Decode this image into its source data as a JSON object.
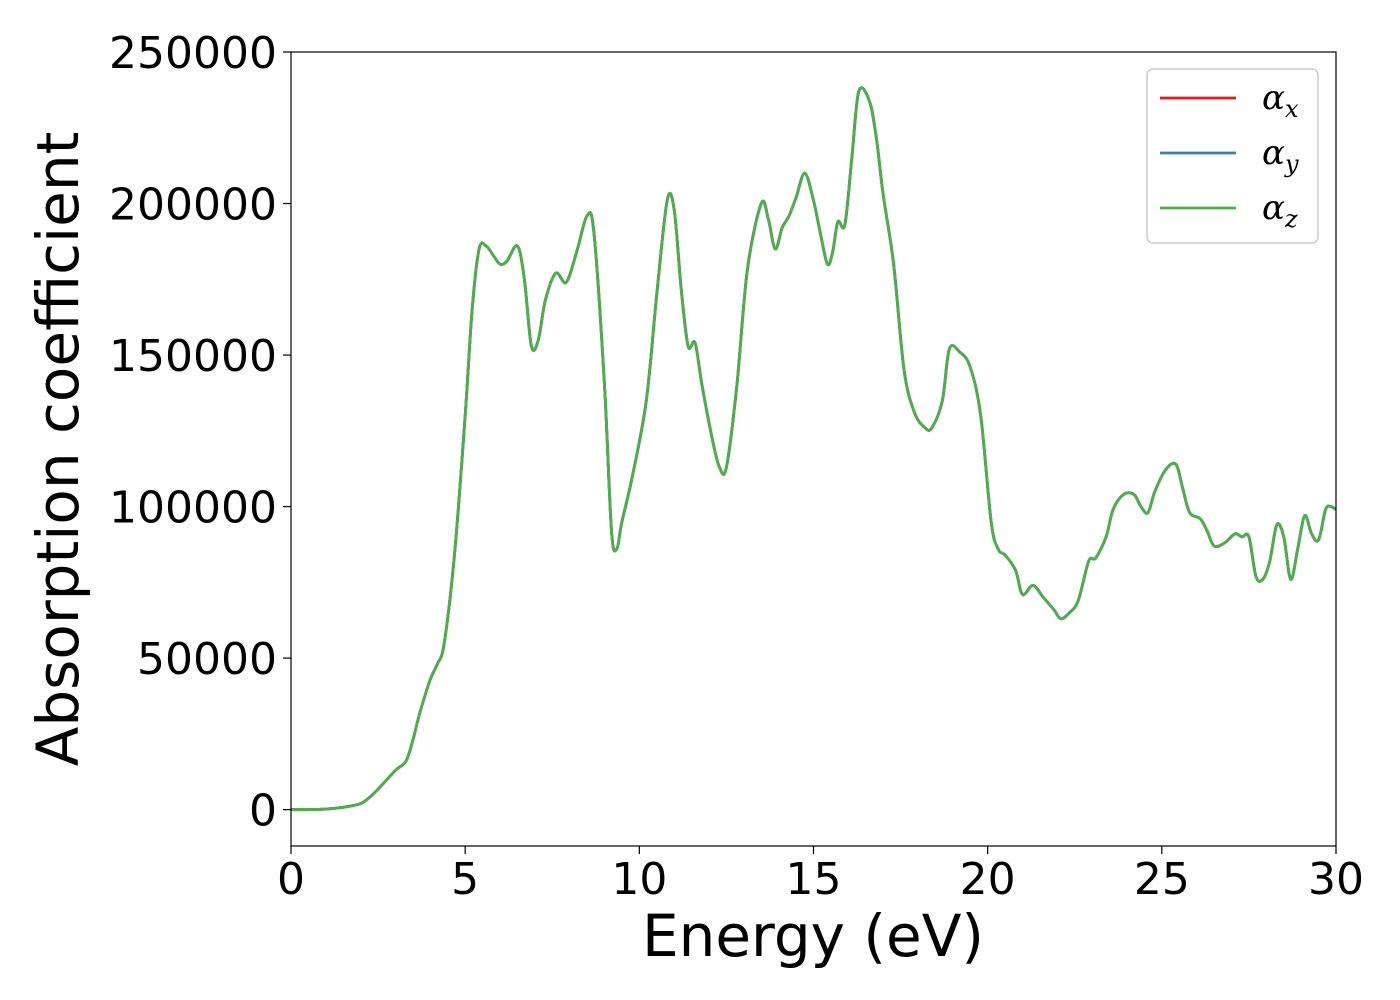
{
  "chart_data": {
    "type": "line",
    "xlabel": "Energy (eV)",
    "ylabel": "Absorption coefficient",
    "xlim": [
      0,
      30
    ],
    "ylim": [
      -12000,
      250000
    ],
    "xticks": [
      0,
      5,
      10,
      15,
      20,
      25,
      30
    ],
    "yticks": [
      0,
      50000,
      100000,
      150000,
      200000,
      250000
    ],
    "grid": false,
    "legend_position": "top-right",
    "legend": [
      {
        "symbol": "α",
        "sub": "x",
        "color": "#e41a1c"
      },
      {
        "symbol": "α",
        "sub": "y",
        "color": "#377eb8"
      },
      {
        "symbol": "α",
        "sub": "z",
        "color": "#4daf4a"
      }
    ],
    "x": [
      0,
      0.5,
      1.0,
      1.5,
      2.0,
      2.3,
      2.6,
      3.0,
      3.3,
      3.5,
      3.7,
      4.0,
      4.2,
      4.4,
      4.7,
      5.0,
      5.2,
      5.4,
      5.6,
      5.8,
      6.0,
      6.2,
      6.5,
      6.7,
      6.9,
      7.1,
      7.3,
      7.6,
      7.9,
      8.2,
      8.5,
      8.7,
      9.0,
      9.2,
      9.35,
      9.5,
      9.8,
      10.2,
      10.5,
      10.8,
      11.0,
      11.2,
      11.4,
      11.6,
      11.8,
      12.1,
      12.3,
      12.5,
      12.8,
      13.1,
      13.5,
      13.7,
      13.9,
      14.1,
      14.3,
      14.5,
      14.75,
      15.0,
      15.2,
      15.4,
      15.55,
      15.7,
      15.9,
      16.1,
      16.3,
      16.6,
      16.8,
      17.0,
      17.3,
      17.6,
      17.9,
      18.2,
      18.4,
      18.7,
      18.9,
      19.2,
      19.5,
      19.8,
      20.1,
      20.3,
      20.5,
      20.8,
      21.0,
      21.3,
      21.6,
      21.9,
      22.1,
      22.35,
      22.6,
      22.9,
      23.1,
      23.4,
      23.6,
      23.9,
      24.2,
      24.4,
      24.6,
      24.8,
      25.1,
      25.4,
      25.6,
      25.8,
      26.1,
      26.3,
      26.5,
      26.8,
      27.1,
      27.3,
      27.5,
      27.7,
      27.9,
      28.1,
      28.3,
      28.5,
      28.7,
      28.9,
      29.1,
      29.3,
      29.5,
      29.7,
      29.85,
      30.0
    ],
    "series": [
      {
        "name": "α_x",
        "color": "#e41a1c",
        "values": [
          0,
          0,
          200,
          800,
          2000,
          4500,
          8000,
          13000,
          16000,
          23000,
          32000,
          43000,
          48000,
          55000,
          85000,
          130000,
          165000,
          185000,
          186000,
          183000,
          180000,
          181000,
          186000,
          175000,
          153000,
          155000,
          168000,
          177000,
          174000,
          184000,
          196000,
          190000,
          140000,
          92000,
          86000,
          95000,
          110000,
          135000,
          170000,
          201000,
          198000,
          172000,
          153000,
          154000,
          140000,
          122000,
          113000,
          113000,
          140000,
          178000,
          200000,
          195000,
          185000,
          192000,
          196000,
          202000,
          210000,
          201000,
          190000,
          180000,
          184000,
          194000,
          193000,
          215000,
          237000,
          234000,
          222000,
          203000,
          180000,
          145000,
          131000,
          126000,
          126000,
          135000,
          152000,
          151000,
          146000,
          130000,
          95000,
          86000,
          84000,
          79000,
          71000,
          74000,
          70000,
          66000,
          63000,
          65000,
          69000,
          82000,
          83000,
          90000,
          99000,
          104000,
          104000,
          100000,
          98000,
          105000,
          112000,
          114000,
          106000,
          98000,
          96000,
          92000,
          87000,
          88000,
          91000,
          90000,
          90000,
          77000,
          76000,
          82000,
          94000,
          90000,
          76000,
          86000,
          97000,
          91000,
          89000,
          99000,
          100000,
          99000
        ]
      },
      {
        "name": "α_y",
        "color": "#377eb8",
        "values": [
          0,
          0,
          200,
          800,
          2000,
          4500,
          8000,
          13000,
          16000,
          23000,
          32000,
          43000,
          48000,
          55000,
          85000,
          130000,
          165000,
          185000,
          186000,
          183000,
          180000,
          181000,
          186000,
          175000,
          153000,
          155000,
          168000,
          177000,
          174000,
          184000,
          196000,
          190000,
          140000,
          92000,
          86000,
          95000,
          110000,
          135000,
          170000,
          201000,
          198000,
          172000,
          153000,
          154000,
          140000,
          122000,
          113000,
          113000,
          140000,
          178000,
          200000,
          195000,
          185000,
          192000,
          196000,
          202000,
          210000,
          201000,
          190000,
          180000,
          184000,
          194000,
          193000,
          215000,
          237000,
          234000,
          222000,
          203000,
          180000,
          145000,
          131000,
          126000,
          126000,
          135000,
          152000,
          151000,
          146000,
          130000,
          95000,
          86000,
          84000,
          79000,
          71000,
          74000,
          70000,
          66000,
          63000,
          65000,
          69000,
          82000,
          83000,
          90000,
          99000,
          104000,
          104000,
          100000,
          98000,
          105000,
          112000,
          114000,
          106000,
          98000,
          96000,
          92000,
          87000,
          88000,
          91000,
          90000,
          90000,
          77000,
          76000,
          82000,
          94000,
          90000,
          76000,
          86000,
          97000,
          91000,
          89000,
          99000,
          100000,
          99000
        ]
      },
      {
        "name": "α_z",
        "color": "#4daf4a",
        "values": [
          0,
          0,
          200,
          800,
          2000,
          4500,
          8000,
          13000,
          16000,
          23000,
          32000,
          43000,
          48000,
          55000,
          85000,
          130000,
          165000,
          185000,
          186000,
          183000,
          180000,
          181000,
          186000,
          175000,
          153000,
          155000,
          168000,
          177000,
          174000,
          184000,
          196000,
          190000,
          140000,
          92000,
          86000,
          95000,
          110000,
          135000,
          170000,
          201000,
          198000,
          172000,
          153000,
          154000,
          140000,
          122000,
          113000,
          113000,
          140000,
          178000,
          200000,
          195000,
          185000,
          192000,
          196000,
          202000,
          210000,
          201000,
          190000,
          180000,
          184000,
          194000,
          193000,
          215000,
          237000,
          234000,
          222000,
          203000,
          180000,
          145000,
          131000,
          126000,
          126000,
          135000,
          152000,
          151000,
          146000,
          130000,
          95000,
          86000,
          84000,
          79000,
          71000,
          74000,
          70000,
          66000,
          63000,
          65000,
          69000,
          82000,
          83000,
          90000,
          99000,
          104000,
          104000,
          100000,
          98000,
          105000,
          112000,
          114000,
          106000,
          98000,
          96000,
          92000,
          87000,
          88000,
          91000,
          90000,
          90000,
          77000,
          76000,
          82000,
          94000,
          90000,
          76000,
          86000,
          97000,
          91000,
          89000,
          99000,
          100000,
          99000
        ]
      }
    ]
  }
}
